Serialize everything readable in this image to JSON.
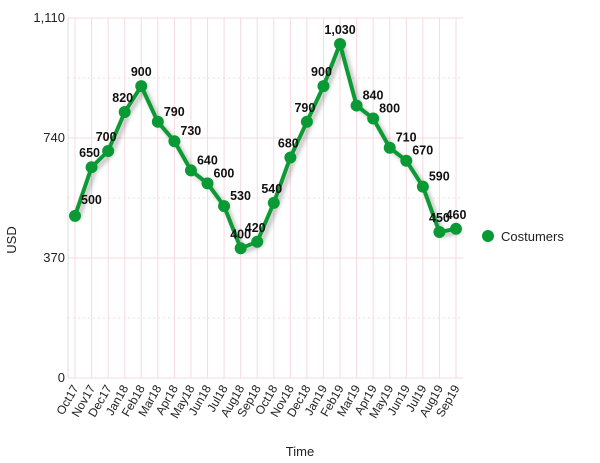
{
  "chart_data": {
    "type": "line",
    "xlabel": "Time",
    "ylabel": "USD",
    "ylim": [
      0,
      1110
    ],
    "yticks": [
      0,
      370,
      740,
      1110
    ],
    "ytick_labels": [
      "0",
      "370",
      "740",
      "1,110"
    ],
    "categories": [
      "Oct17",
      "Nov17",
      "Dec17",
      "Jan18",
      "Feb18",
      "Mar18",
      "Apr18",
      "May18",
      "Jun18",
      "Jul18",
      "Aug18",
      "Sep18",
      "Oct18",
      "Nov18",
      "Dec18",
      "Jan19",
      "Feb19",
      "Mar19",
      "Apr19",
      "May19",
      "Jun19",
      "Jul19",
      "Aug19",
      "Sep19"
    ],
    "series": [
      {
        "name": "Costumers",
        "values": [
          500,
          650,
          700,
          820,
          900,
          790,
          730,
          640,
          600,
          530,
          400,
          420,
          540,
          680,
          790,
          900,
          1030,
          840,
          800,
          710,
          670,
          590,
          450,
          460
        ],
        "value_labels": [
          "500",
          "650",
          "700",
          "820",
          "900",
          "790",
          "730",
          "640",
          "600",
          "530",
          "400",
          "420",
          "540",
          "680",
          "790",
          "900",
          "1,030",
          "840",
          "800",
          "710",
          "670",
          "590",
          "450",
          "460"
        ]
      }
    ],
    "grid": true,
    "legend_position": "right",
    "colors": {
      "series": "#0a9a35",
      "grid": "#f7d9e1"
    }
  }
}
